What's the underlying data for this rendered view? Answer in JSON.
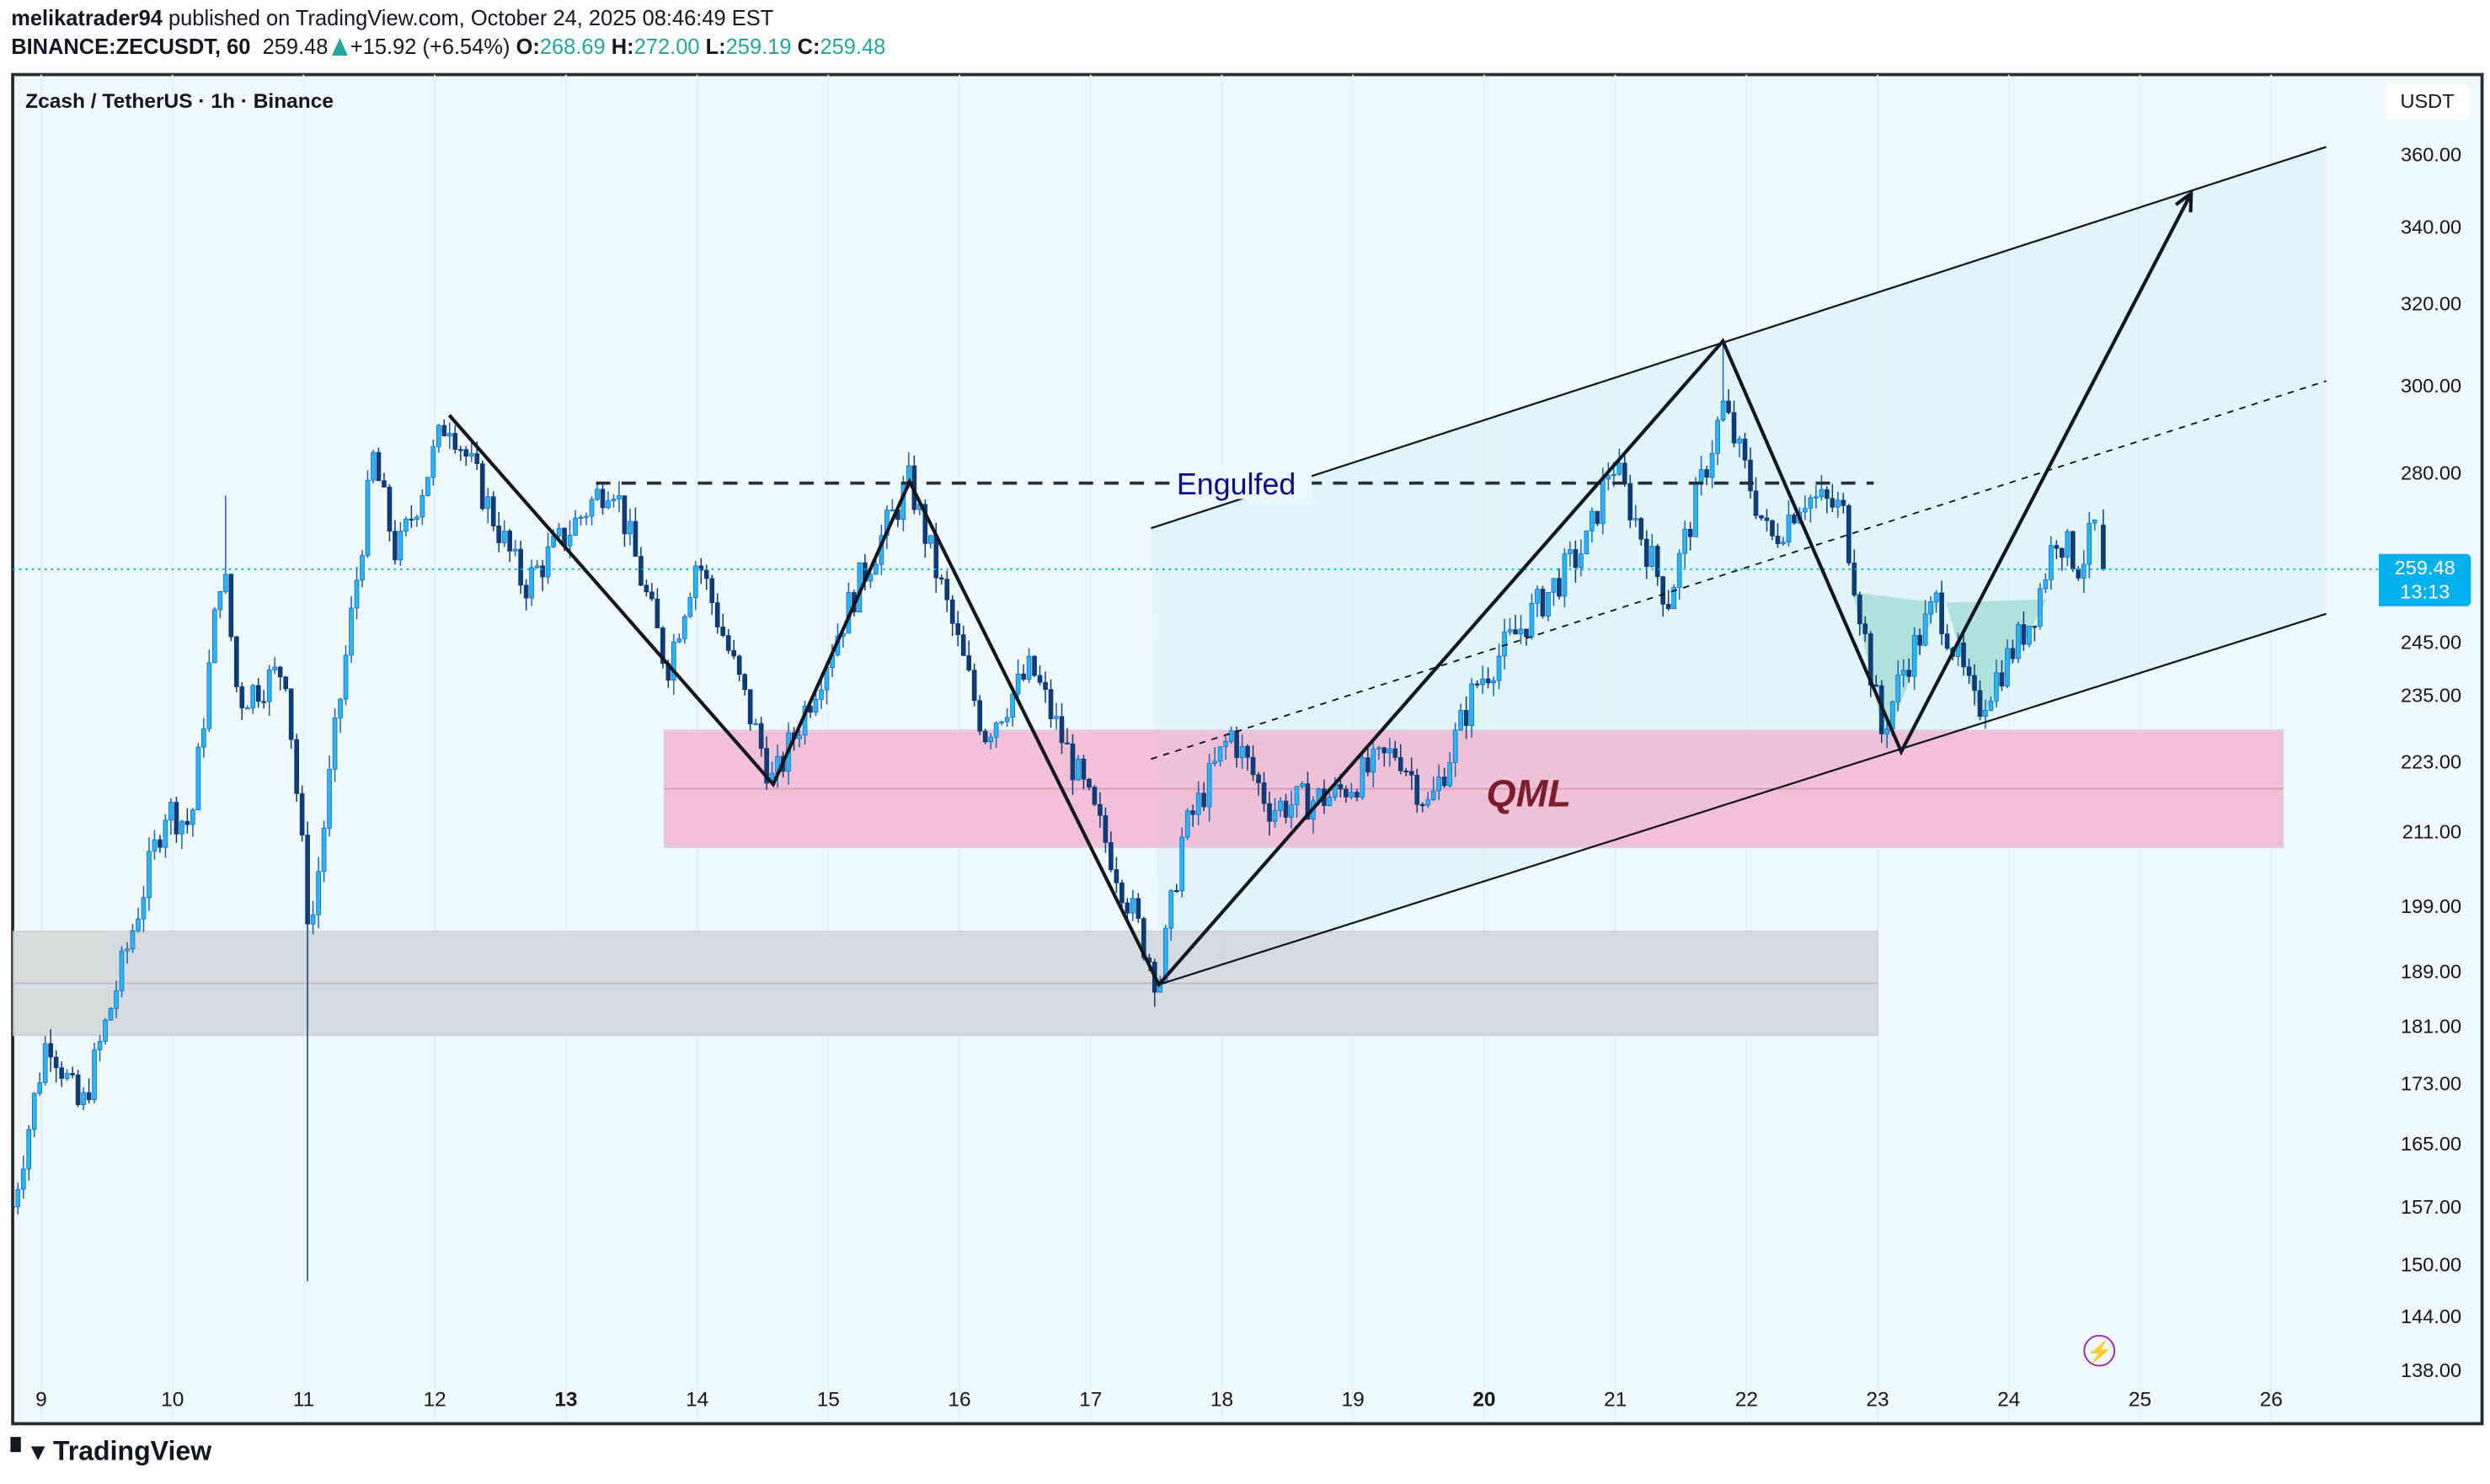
{
  "header": {
    "author": "melikatrader94",
    "published": "published on TradingView.com, October 24, 2025 08:46:49 EST",
    "symbol": "BINANCE:ZECUSDT, 60",
    "last": "259.48",
    "change": "+15.92 (+6.54%)",
    "o_label": "O:",
    "o": "268.69",
    "h_label": "H:",
    "h": "272.00",
    "l_label": "L:",
    "l": "259.19",
    "c_label": "C:",
    "c": "259.48"
  },
  "chart_title": "Zcash / TetherUS · 1h · Binance",
  "currency": "USDT",
  "price_tag": {
    "price": "259.48",
    "countdown": "13:13"
  },
  "branding": "TradingView",
  "colors": {
    "up": "#29b6f6",
    "up_border": "#1565c0",
    "down": "#0d3c78",
    "background": "#f0f8fa",
    "qml_zone": "#f3b8cf",
    "support_zone": "#d3d7d8",
    "channel_fill": "#d7f3f2",
    "last_price": "#03b0ee",
    "engulfed_text": "#0d0d8a",
    "qml_text": "#7a1d2c"
  },
  "chart_data": {
    "type": "candlestick",
    "title": "Zcash / TetherUS · 1h · Binance",
    "y_scale": "log",
    "ylim": [
      138,
      362
    ],
    "y_ticks": [
      "360.00",
      "340.00",
      "320.00",
      "300.00",
      "280.00",
      "245.00",
      "235.00",
      "223.00",
      "211.00",
      "199.00",
      "189.00",
      "181.00",
      "173.00",
      "165.00",
      "157.00",
      "150.00",
      "144.00",
      "138.00"
    ],
    "x_ticks": [
      "9",
      "10",
      "11",
      "12",
      "13",
      "14",
      "15",
      "16",
      "17",
      "18",
      "19",
      "20",
      "21",
      "22",
      "23",
      "24",
      "25",
      "26"
    ],
    "x_ticks_bold": [
      "13",
      "20"
    ],
    "xlim_days": [
      8.78,
      27.1
    ],
    "price_path": [
      [
        8.78,
        157
      ],
      [
        9.05,
        180
      ],
      [
        9.3,
        169
      ],
      [
        9.65,
        192
      ],
      [
        9.95,
        215
      ],
      [
        10.14,
        212
      ],
      [
        10.38,
        262
      ],
      [
        10.5,
        234
      ],
      [
        10.86,
        240
      ],
      [
        11.05,
        194
      ],
      [
        11.23,
        226
      ],
      [
        11.53,
        283
      ],
      [
        11.71,
        262
      ],
      [
        12.1,
        293
      ],
      [
        12.68,
        256
      ],
      [
        13.35,
        279
      ],
      [
        13.77,
        240
      ],
      [
        14.0,
        262
      ],
      [
        14.58,
        219
      ],
      [
        15.22,
        256
      ],
      [
        15.62,
        278
      ],
      [
        16.19,
        228
      ],
      [
        16.55,
        240
      ],
      [
        17.16,
        207
      ],
      [
        17.52,
        187
      ],
      [
        17.7,
        210
      ],
      [
        18.07,
        228
      ],
      [
        18.37,
        215
      ],
      [
        18.85,
        217
      ],
      [
        19.34,
        225
      ],
      [
        19.58,
        215
      ],
      [
        19.94,
        237
      ],
      [
        20.79,
        265
      ],
      [
        20.97,
        283
      ],
      [
        21.4,
        253
      ],
      [
        21.82,
        295
      ],
      [
        22.18,
        265
      ],
      [
        22.43,
        275
      ],
      [
        22.73,
        272
      ],
      [
        23.03,
        228
      ],
      [
        23.2,
        240
      ],
      [
        23.45,
        253
      ],
      [
        23.75,
        232
      ],
      [
        24.18,
        250
      ],
      [
        24.36,
        267
      ],
      [
        24.54,
        260
      ],
      [
        24.68,
        270
      ],
      [
        24.72,
        259.48
      ]
    ],
    "extreme_wicks": [
      [
        11.05,
        148,
        "low"
      ],
      [
        10.4,
        275,
        "high"
      ],
      [
        21.82,
        310,
        "high"
      ],
      [
        17.52,
        186,
        "low"
      ]
    ],
    "last_candle": {
      "open": 268.69,
      "high": 272.0,
      "low": 259.19,
      "close": 259.48
    },
    "last_price": 259.48,
    "annotations": {
      "zigzag": [
        [
          12.11,
          293
        ],
        [
          14.58,
          219
        ],
        [
          15.62,
          278
        ],
        [
          17.52,
          187
        ],
        [
          21.82,
          310.6
        ],
        [
          23.18,
          224.7
        ],
        [
          25.39,
          349
        ]
      ],
      "channel_upper": [
        [
          17.46,
          268
        ],
        [
          26.42,
          362
        ]
      ],
      "channel_mid": [
        [
          17.46,
          223.4
        ],
        [
          26.42,
          301
        ]
      ],
      "channel_lower": [
        [
          17.52,
          187
        ],
        [
          26.42,
          250.5
        ]
      ],
      "engulfed_line": {
        "price": 277.7,
        "from": 13.23,
        "to": 22.97,
        "label": "Engulfed"
      },
      "qml_zone": {
        "top": 228.5,
        "bottom": 208.4,
        "from": 13.75,
        "to": 26.09,
        "label": "QML"
      },
      "support_zone": {
        "top": 195,
        "bottom": 179.7,
        "from": 8.78,
        "to": 23.0
      },
      "pattern_triangles": [
        [
          [
            22.81,
            254.8
          ],
          [
            23.46,
            252.7
          ],
          [
            23.06,
            226
          ]
        ],
        [
          [
            23.52,
            252.7
          ],
          [
            24.29,
            253.4
          ],
          [
            23.79,
            230.5
          ]
        ]
      ]
    }
  }
}
